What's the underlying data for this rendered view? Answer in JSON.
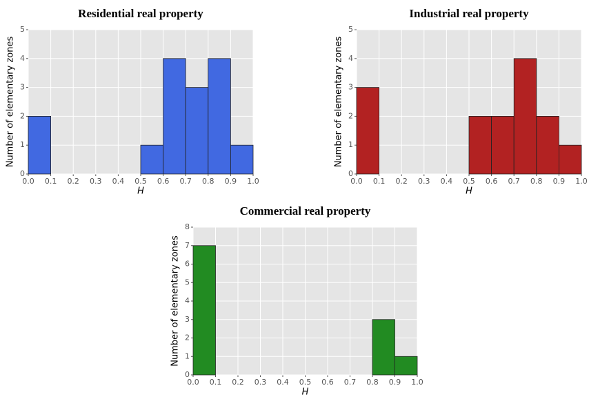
{
  "chart_data": [
    {
      "type": "histogram",
      "title": "Residential real property",
      "x_label": "H",
      "y_label": "Number of elementary zones",
      "bins": [
        0.0,
        0.1,
        0.2,
        0.3,
        0.4,
        0.5,
        0.6,
        0.7,
        0.8,
        0.9,
        1.0
      ],
      "values": [
        2,
        0,
        0,
        0,
        0,
        1,
        4,
        3,
        4,
        1
      ],
      "color": "#4169e1",
      "xlim": [
        0,
        1
      ],
      "ylim": [
        0,
        5
      ],
      "xticks": [
        {
          "value": 0,
          "label": "0.0"
        },
        0.1,
        0.2,
        0.3,
        0.4,
        0.5,
        0.6,
        0.7,
        0.8,
        0.9,
        {
          "value": 1,
          "label": "1.0"
        }
      ],
      "yticks": [
        0,
        1,
        2,
        3,
        4,
        5
      ],
      "grid": true
    },
    {
      "type": "histogram",
      "title": "Industrial real property",
      "x_label": "H",
      "y_label": "Number of elementary zones",
      "bins": [
        0.0,
        0.1,
        0.2,
        0.3,
        0.4,
        0.5,
        0.6,
        0.7,
        0.8,
        0.9,
        1.0
      ],
      "values": [
        3,
        0,
        0,
        0,
        0,
        2,
        2,
        4,
        2,
        1
      ],
      "color": "#b22222",
      "xlim": [
        0,
        1
      ],
      "ylim": [
        0,
        5
      ],
      "xticks": [
        {
          "value": 0,
          "label": "0.0"
        },
        0.1,
        0.2,
        0.3,
        0.4,
        0.5,
        0.6,
        0.7,
        0.8,
        0.9,
        {
          "value": 1,
          "label": "1.0"
        }
      ],
      "yticks": [
        0,
        1,
        2,
        3,
        4,
        5
      ],
      "grid": true
    },
    {
      "type": "histogram",
      "title": "Commercial real property",
      "x_label": "H",
      "y_label": "Number of elementary zones",
      "bins": [
        0.0,
        0.1,
        0.2,
        0.3,
        0.4,
        0.5,
        0.6,
        0.7,
        0.8,
        0.9,
        1.0
      ],
      "values": [
        7,
        0,
        0,
        0,
        0,
        0,
        0,
        0,
        3,
        1
      ],
      "color": "#228b22",
      "xlim": [
        0,
        1
      ],
      "ylim": [
        0,
        8
      ],
      "xticks": [
        {
          "value": 0,
          "label": "0.0"
        },
        0.1,
        0.2,
        0.3,
        0.4,
        0.5,
        0.6,
        0.7,
        0.8,
        0.9,
        {
          "value": 1,
          "label": "1.0"
        }
      ],
      "yticks": [
        0,
        1,
        2,
        3,
        4,
        5,
        6,
        7,
        8
      ],
      "grid": true
    }
  ]
}
